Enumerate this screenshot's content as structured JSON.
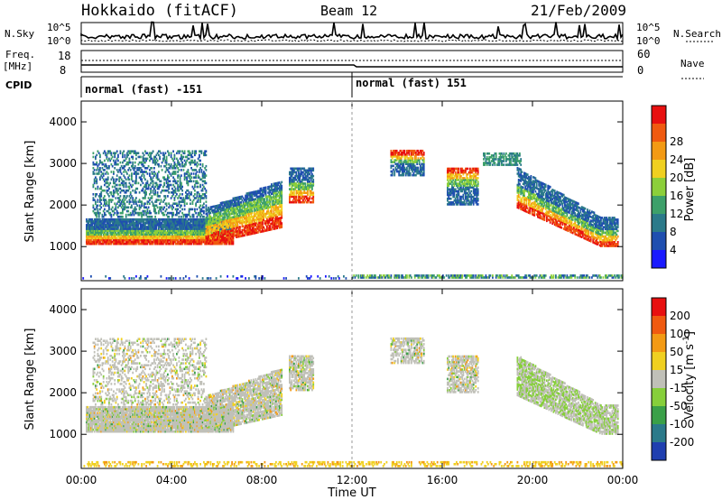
{
  "header": {
    "title": "Hokkaido (fitACF)",
    "beam": "Beam 12",
    "date": "21/Feb/2009"
  },
  "panels": {
    "nsky_label": "N.Sky",
    "nsky_ticks": [
      "10^5",
      "10^0"
    ],
    "nsearch_label": "N.Search",
    "nsearch_ticks": [
      "10^5",
      "10^0"
    ],
    "freq_label_1": "Freq.",
    "freq_label_2": "[MHz]",
    "freq_ticks": [
      "18",
      "8"
    ],
    "nave_label": "Nave",
    "nave_ticks": [
      "60",
      "0"
    ],
    "cpid_label": "CPID",
    "cpid_segments": [
      {
        "label": "normal (fast) -151",
        "start_hour": 0
      },
      {
        "label": "normal (fast) 151",
        "start_hour": 12
      }
    ]
  },
  "chart_data": [
    {
      "type": "heatmap",
      "name": "power",
      "ylabel": "Slant Range [km]",
      "ylim": [
        180,
        4500
      ],
      "yticks": [
        1000,
        2000,
        3000,
        4000
      ],
      "xlim": [
        0,
        24
      ],
      "colorbar": {
        "label": "Power [dB]",
        "ticks": [
          "4",
          "8",
          "12",
          "16",
          "20",
          "24",
          "28"
        ],
        "colors": [
          "#1a1aff",
          "#1f4fb0",
          "#2b7a8a",
          "#3da06a",
          "#8ccf3a",
          "#f0d020",
          "#f39a14",
          "#f05a10",
          "#e81010"
        ]
      }
    },
    {
      "type": "heatmap",
      "name": "velocity",
      "ylabel": "Slant Range [km]",
      "ylim": [
        180,
        4500
      ],
      "yticks": [
        1000,
        2000,
        3000,
        4000
      ],
      "xlim": [
        0,
        24
      ],
      "xticks": [
        "00:00",
        "04:00",
        "08:00",
        "12:00",
        "16:00",
        "20:00",
        "00:00"
      ],
      "xlabel": "Time UT",
      "colorbar": {
        "label": "Velocity [m s^-1]",
        "ticks": [
          "200",
          "100",
          "50",
          "15",
          "-15",
          "-50",
          "-100",
          "-200"
        ],
        "colors": [
          "#1f3fb0",
          "#2b7a8a",
          "#3aa048",
          "#86cf3a",
          "#c0c0b8",
          "#f0d020",
          "#f39a14",
          "#f05a10",
          "#e81010"
        ]
      }
    }
  ]
}
